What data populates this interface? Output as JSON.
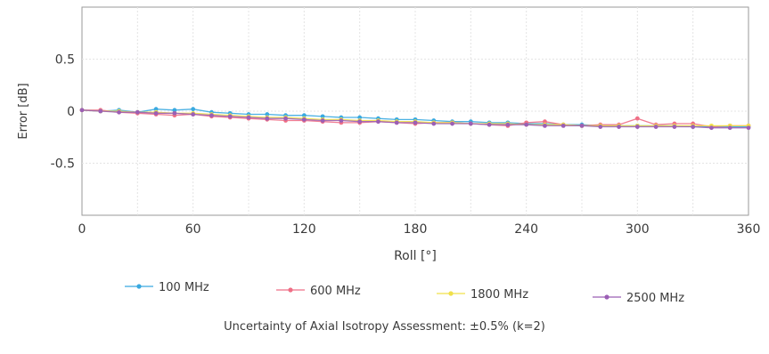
{
  "chart_data": {
    "type": "line",
    "xlabel": "Roll [°]",
    "ylabel": "Error [dB]",
    "xlim": [
      0,
      360
    ],
    "ylim": [
      -1,
      1
    ],
    "xticks": [
      0,
      60,
      120,
      180,
      240,
      300,
      360
    ],
    "yticks": [
      0.5,
      0,
      -0.5
    ],
    "ytick_labels": [
      "0.5",
      "0",
      "-0.5"
    ],
    "grid": true,
    "legend_position": "bottom",
    "x": [
      0,
      10,
      20,
      30,
      40,
      50,
      60,
      70,
      80,
      90,
      100,
      110,
      120,
      130,
      140,
      150,
      160,
      170,
      180,
      190,
      200,
      210,
      220,
      230,
      240,
      250,
      260,
      270,
      280,
      290,
      300,
      310,
      320,
      330,
      340,
      350,
      360
    ],
    "series": [
      {
        "name": "100 MHz",
        "color": "#39a9e0",
        "values": [
          0.01,
          0.0,
          0.01,
          -0.01,
          0.02,
          0.01,
          0.02,
          -0.01,
          -0.02,
          -0.03,
          -0.03,
          -0.04,
          -0.04,
          -0.05,
          -0.06,
          -0.06,
          -0.07,
          -0.08,
          -0.08,
          -0.09,
          -0.1,
          -0.1,
          -0.11,
          -0.11,
          -0.12,
          -0.12,
          -0.13,
          -0.13,
          -0.14,
          -0.14,
          -0.14,
          -0.14,
          -0.14,
          -0.15,
          -0.15,
          -0.15,
          -0.15
        ]
      },
      {
        "name": "600 MHz",
        "color": "#ef6f86",
        "values": [
          0.01,
          0.01,
          -0.01,
          -0.02,
          -0.03,
          -0.04,
          -0.03,
          -0.05,
          -0.06,
          -0.07,
          -0.08,
          -0.09,
          -0.09,
          -0.1,
          -0.11,
          -0.11,
          -0.1,
          -0.11,
          -0.12,
          -0.11,
          -0.11,
          -0.12,
          -0.13,
          -0.14,
          -0.11,
          -0.1,
          -0.13,
          -0.14,
          -0.13,
          -0.13,
          -0.07,
          -0.13,
          -0.12,
          -0.12,
          -0.15,
          -0.14,
          -0.14
        ]
      },
      {
        "name": "1800 MHz",
        "color": "#f0e04a",
        "values": [
          0.01,
          0.0,
          0.0,
          -0.01,
          -0.01,
          -0.02,
          -0.02,
          -0.03,
          -0.04,
          -0.05,
          -0.06,
          -0.06,
          -0.07,
          -0.08,
          -0.08,
          -0.09,
          -0.09,
          -0.1,
          -0.1,
          -0.11,
          -0.11,
          -0.12,
          -0.12,
          -0.12,
          -0.13,
          -0.13,
          -0.13,
          -0.14,
          -0.14,
          -0.14,
          -0.14,
          -0.14,
          -0.14,
          -0.14,
          -0.14,
          -0.14,
          -0.14
        ]
      },
      {
        "name": "2500 MHz",
        "color": "#9b5fb5",
        "values": [
          0.01,
          0.0,
          -0.01,
          -0.01,
          -0.02,
          -0.02,
          -0.03,
          -0.04,
          -0.05,
          -0.06,
          -0.07,
          -0.07,
          -0.08,
          -0.09,
          -0.09,
          -0.1,
          -0.1,
          -0.11,
          -0.11,
          -0.12,
          -0.12,
          -0.12,
          -0.13,
          -0.13,
          -0.13,
          -0.14,
          -0.14,
          -0.14,
          -0.15,
          -0.15,
          -0.15,
          -0.15,
          -0.15,
          -0.15,
          -0.16,
          -0.16,
          -0.16
        ]
      }
    ]
  },
  "caption": "Uncertainty of Axial Isotropy Assessment: ±0.5% (k=2)"
}
